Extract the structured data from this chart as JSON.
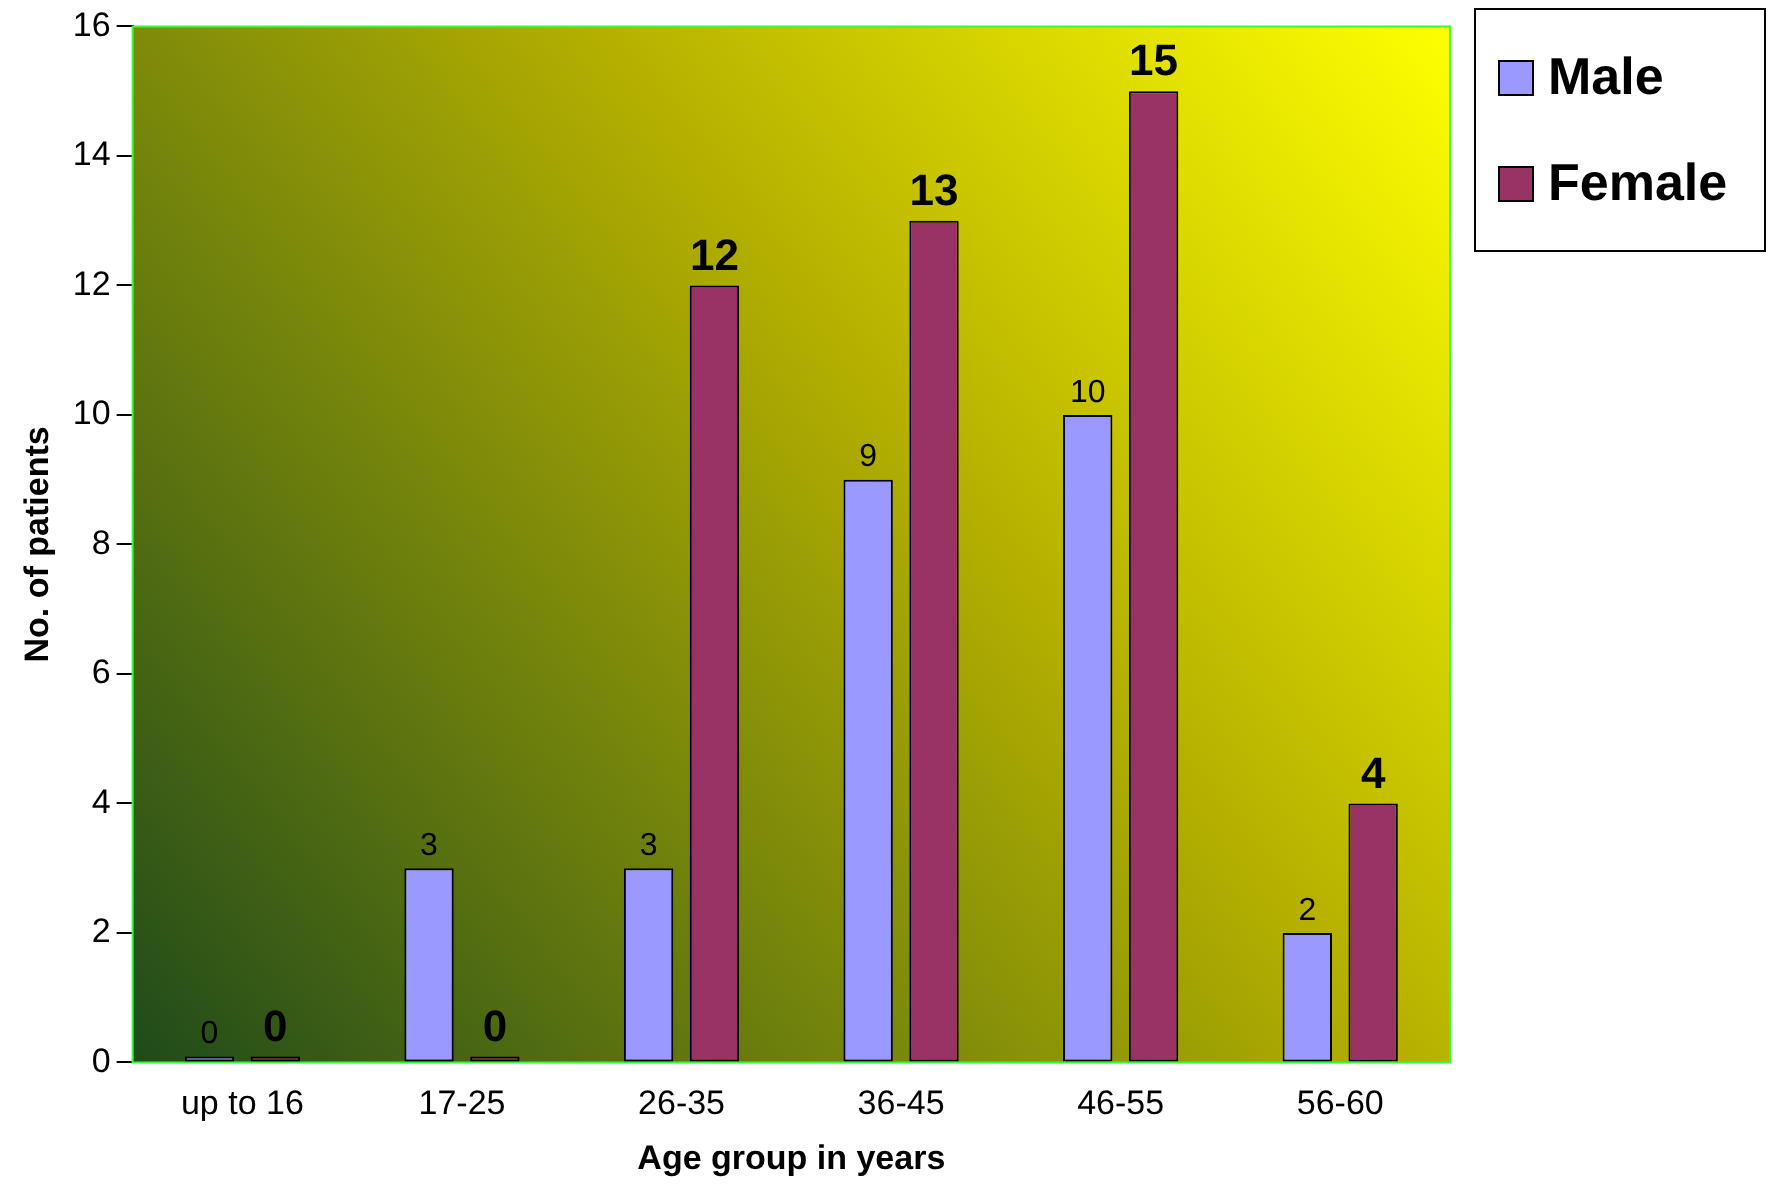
{
  "chart_data": {
    "type": "bar",
    "xlabel": "Age group in years",
    "ylabel": "No. of patients",
    "categories": [
      "up to 16",
      "17-25",
      "26-35",
      "36-45",
      "46-55",
      "56-60"
    ],
    "series": [
      {
        "name": "Male",
        "color": "#9999ff",
        "values": [
          0,
          3,
          3,
          9,
          10,
          2
        ]
      },
      {
        "name": "Female",
        "color": "#993366",
        "values": [
          0,
          0,
          12,
          13,
          15,
          4
        ]
      }
    ],
    "ylim": [
      0,
      16
    ],
    "yticks": [
      0,
      2,
      4,
      6,
      8,
      10,
      12,
      14,
      16
    ],
    "grid": false,
    "legend": "top right",
    "data_labels": true
  }
}
